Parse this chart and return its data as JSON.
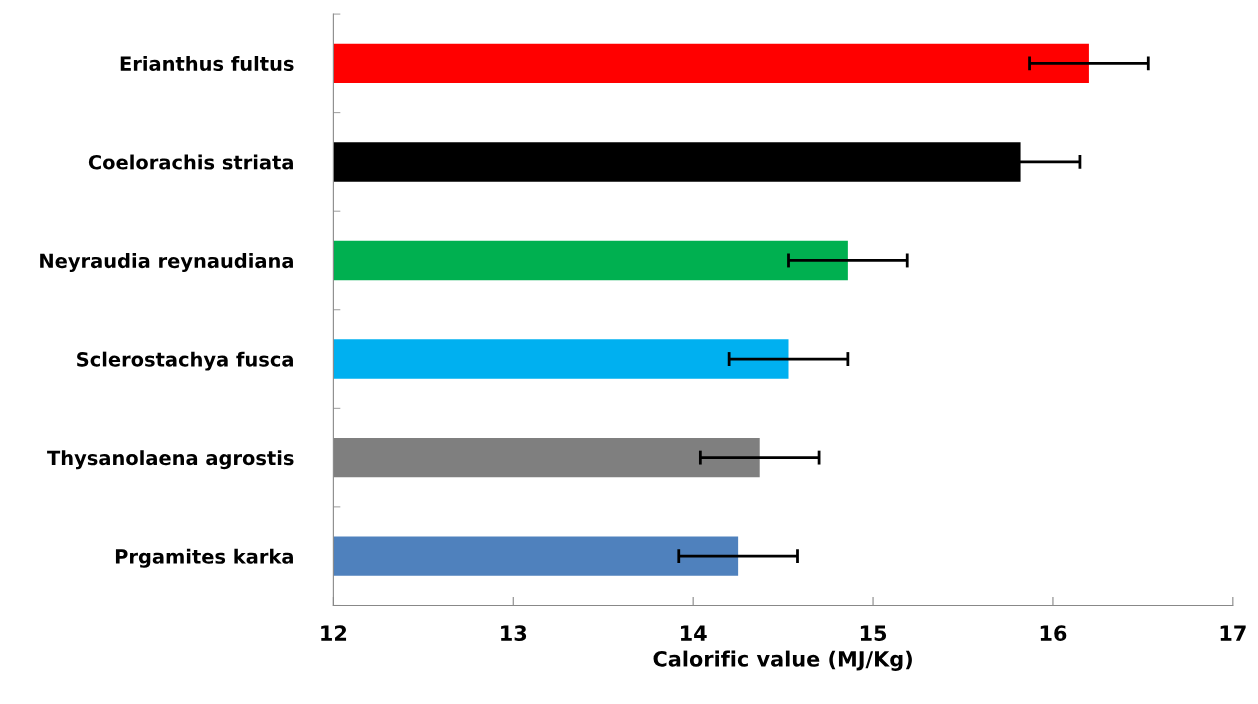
{
  "chart_data": {
    "type": "bar",
    "orientation": "horizontal",
    "xlabel": "Calorific value (MJ/Kg)",
    "categories": [
      "Erianthus fultus",
      "Coelorachis striata",
      "Neyraudia reynaudiana",
      "Sclerostachya fusca",
      "Thysanolaena agrostis",
      "Prgamites karka"
    ],
    "values": [
      16.2,
      15.82,
      14.86,
      14.53,
      14.37,
      14.25
    ],
    "errors": [
      0.33,
      0.33,
      0.33,
      0.33,
      0.33,
      0.33
    ],
    "colors": [
      "#ff0000",
      "#000000",
      "#00b050",
      "#00b0f0",
      "#7f7f7f",
      "#4f81bd"
    ],
    "xlim": [
      12,
      17
    ],
    "xticks": [
      12,
      13,
      14,
      15,
      16,
      17
    ],
    "grid": false,
    "legend": false
  }
}
